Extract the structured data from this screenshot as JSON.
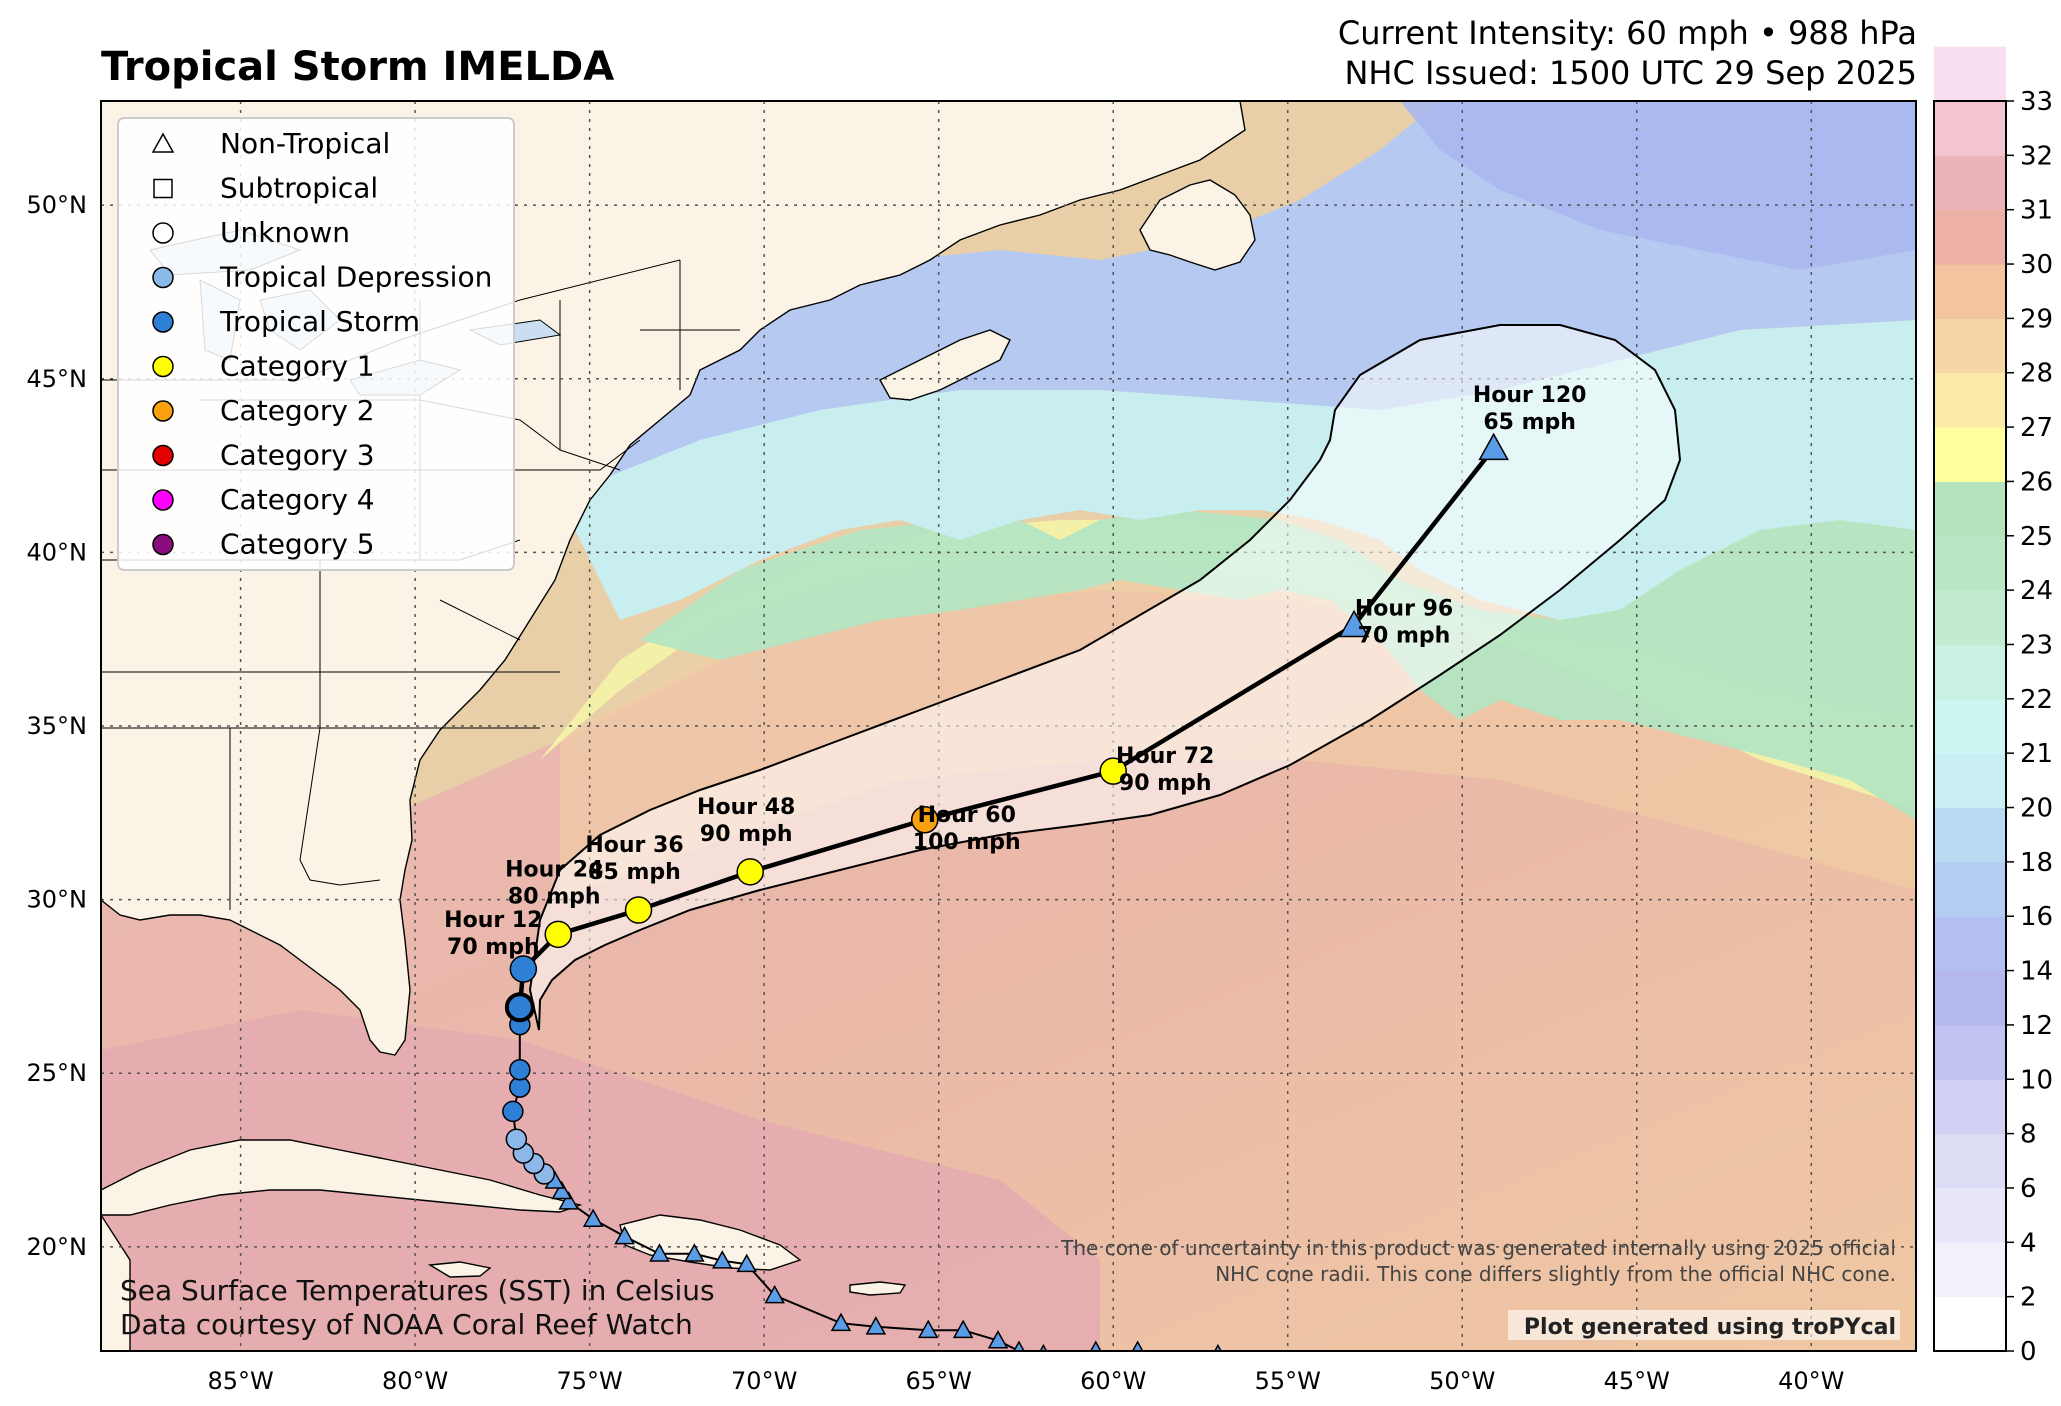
{
  "header": {
    "title": "Tropical Storm IMELDA",
    "intensity_line": "Current Intensity: 60 mph • 988 hPa",
    "issued_line": "NHC Issued: 1500 UTC 29 Sep 2025"
  },
  "map": {
    "lon_range": [
      -89,
      -37
    ],
    "lat_range": [
      17,
      53
    ],
    "lon_ticks": [
      {
        "value": -85,
        "label": "85°W"
      },
      {
        "value": -80,
        "label": "80°W"
      },
      {
        "value": -75,
        "label": "75°W"
      },
      {
        "value": -70,
        "label": "70°W"
      },
      {
        "value": -65,
        "label": "65°W"
      },
      {
        "value": -60,
        "label": "60°W"
      },
      {
        "value": -55,
        "label": "55°W"
      },
      {
        "value": -50,
        "label": "50°W"
      },
      {
        "value": -45,
        "label": "45°W"
      },
      {
        "value": -40,
        "label": "40°W"
      }
    ],
    "lat_ticks": [
      {
        "value": 20,
        "label": "20°N"
      },
      {
        "value": 25,
        "label": "25°N"
      },
      {
        "value": 30,
        "label": "30°N"
      },
      {
        "value": 35,
        "label": "35°N"
      },
      {
        "value": 40,
        "label": "40°N"
      },
      {
        "value": 45,
        "label": "45°N"
      },
      {
        "value": 50,
        "label": "50°N"
      }
    ],
    "grid": "dotted",
    "land_color": "#faf3e6",
    "border_color": "#000000"
  },
  "legend": {
    "placement": "top-left",
    "items": [
      {
        "label": "Non-Tropical",
        "shape": "triangle",
        "color": "#ffffff"
      },
      {
        "label": "Subtropical",
        "shape": "square",
        "color": "#ffffff"
      },
      {
        "label": "Unknown",
        "shape": "circle",
        "color": "#ffffff"
      },
      {
        "label": "Tropical Depression",
        "shape": "circle",
        "color": "#8db8ea"
      },
      {
        "label": "Tropical Storm",
        "shape": "circle",
        "color": "#2e7fd6"
      },
      {
        "label": "Category 1",
        "shape": "circle",
        "color": "#ffff00"
      },
      {
        "label": "Category 2",
        "shape": "circle",
        "color": "#f8a00d"
      },
      {
        "label": "Category 3",
        "shape": "circle",
        "color": "#e30000"
      },
      {
        "label": "Category 4",
        "shape": "circle",
        "color": "#ff00ff"
      },
      {
        "label": "Category 5",
        "shape": "circle",
        "color": "#8a0d80"
      }
    ]
  },
  "colorbar": {
    "ticks": [
      "0",
      "2",
      "4",
      "6",
      "8",
      "10",
      "12",
      "14",
      "16",
      "18",
      "20",
      "21",
      "22",
      "23",
      "24",
      "25",
      "26",
      "27",
      "28",
      "29",
      "30",
      "31",
      "32",
      "33"
    ],
    "colors": [
      "#ffffff",
      "#f4f0fb",
      "#e8e6f8",
      "#dcdcf5",
      "#cfd0f2",
      "#c1c3f0",
      "#b5b8ee",
      "#b3bff1",
      "#b4cdf2",
      "#bad9f2",
      "#c9eef4",
      "#cdf6f2",
      "#c9f1e2",
      "#c1ecd2",
      "#b8e7c4",
      "#b5e4bc",
      "#ffff9e",
      "#fceba7",
      "#f6d6a4",
      "#f2c4a0",
      "#edb0a5",
      "#ecb4b8",
      "#f3c5d0",
      "#f9def0"
    ]
  },
  "past_track": {
    "points": [
      {
        "lon": -57.0,
        "lat": 16.9,
        "type": "non-tropical"
      },
      {
        "lon": -59.3,
        "lat": 17.0,
        "type": "non-tropical"
      },
      {
        "lon": -60.5,
        "lat": 17.0,
        "type": "non-tropical"
      },
      {
        "lon": -62.0,
        "lat": 16.9,
        "type": "non-tropical"
      },
      {
        "lon": -62.7,
        "lat": 17.0,
        "type": "non-tropical"
      },
      {
        "lon": -63.3,
        "lat": 17.3,
        "type": "non-tropical"
      },
      {
        "lon": -64.3,
        "lat": 17.6,
        "type": "non-tropical"
      },
      {
        "lon": -65.3,
        "lat": 17.6,
        "type": "non-tropical"
      },
      {
        "lon": -66.8,
        "lat": 17.7,
        "type": "non-tropical"
      },
      {
        "lon": -67.8,
        "lat": 17.8,
        "type": "non-tropical"
      },
      {
        "lon": -69.7,
        "lat": 18.6,
        "type": "non-tropical"
      },
      {
        "lon": -70.5,
        "lat": 19.5,
        "type": "non-tropical"
      },
      {
        "lon": -71.2,
        "lat": 19.6,
        "type": "non-tropical"
      },
      {
        "lon": -72.0,
        "lat": 19.8,
        "type": "non-tropical"
      },
      {
        "lon": -73.0,
        "lat": 19.8,
        "type": "non-tropical"
      },
      {
        "lon": -74.0,
        "lat": 20.3,
        "type": "non-tropical"
      },
      {
        "lon": -74.9,
        "lat": 20.8,
        "type": "non-tropical"
      },
      {
        "lon": -75.6,
        "lat": 21.3,
        "type": "non-tropical"
      },
      {
        "lon": -75.8,
        "lat": 21.6,
        "type": "non-tropical"
      },
      {
        "lon": -76.0,
        "lat": 21.9,
        "type": "non-tropical"
      },
      {
        "lon": -76.3,
        "lat": 22.1,
        "type": "tropical-depression"
      },
      {
        "lon": -76.6,
        "lat": 22.4,
        "type": "tropical-depression"
      },
      {
        "lon": -76.9,
        "lat": 22.7,
        "type": "tropical-depression"
      },
      {
        "lon": -77.1,
        "lat": 23.1,
        "type": "tropical-depression"
      },
      {
        "lon": -77.2,
        "lat": 23.9,
        "type": "tropical-storm"
      },
      {
        "lon": -77.0,
        "lat": 24.6,
        "type": "tropical-storm"
      },
      {
        "lon": -77.0,
        "lat": 25.1,
        "type": "tropical-storm"
      },
      {
        "lon": -77.0,
        "lat": 26.4,
        "type": "tropical-storm"
      },
      {
        "lon": -77.0,
        "lat": 26.9,
        "type": "tropical-storm"
      }
    ]
  },
  "current_position": {
    "lon": -77.0,
    "lat": 26.9,
    "type": "tropical-storm"
  },
  "forecast": [
    {
      "hour_label": "Hour 12",
      "wind_label": "70 mph",
      "lon": -76.9,
      "lat": 28.0,
      "type": "tropical-storm"
    },
    {
      "hour_label": "Hour 24",
      "wind_label": "80 mph",
      "lon": -75.9,
      "lat": 29.0,
      "type": "category-1"
    },
    {
      "hour_label": "Hour 36",
      "wind_label": "85 mph",
      "lon": -73.6,
      "lat": 29.7,
      "type": "category-1"
    },
    {
      "hour_label": "Hour 48",
      "wind_label": "90 mph",
      "lon": -70.4,
      "lat": 30.8,
      "type": "category-1"
    },
    {
      "hour_label": "Hour 60",
      "wind_label": "100 mph",
      "lon": -65.4,
      "lat": 32.3,
      "type": "category-2"
    },
    {
      "hour_label": "Hour 72",
      "wind_label": "90 mph",
      "lon": -60.0,
      "lat": 33.7,
      "type": "category-1"
    },
    {
      "hour_label": "Hour 96",
      "wind_label": "70 mph",
      "lon": -53.1,
      "lat": 37.9,
      "type": "non-tropical"
    },
    {
      "hour_label": "Hour 120",
      "wind_label": "65 mph",
      "lon": -49.1,
      "lat": 43.0,
      "type": "non-tropical"
    }
  ],
  "notes": {
    "cone_note_line1": "The cone of uncertainty in this product was generated internally using 2025 official",
    "cone_note_line2": "NHC cone radii. This cone differs slightly from the official NHC cone.",
    "credit": "Plot generated using troPYcal",
    "sst_line1": "Sea Surface Temperatures (SST) in Celsius",
    "sst_line2": "Data courtesy of NOAA Coral Reef Watch"
  }
}
